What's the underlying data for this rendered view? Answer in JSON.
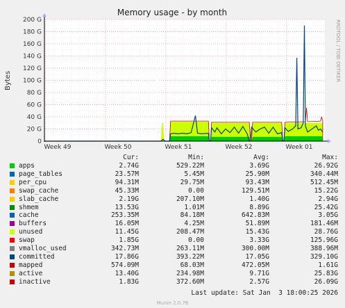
{
  "chart_data": {
    "type": "area",
    "title": "Memory usage - by month",
    "ylabel": "Bytes",
    "side_label": "RRDTOOL / TOBI OETIKER",
    "y_ticks": [
      "0",
      "20 G",
      "40 G",
      "60 G",
      "80 G",
      "100 G",
      "120 G",
      "140 G",
      "160 G",
      "180 G",
      "200 G"
    ],
    "ylim": [
      0,
      200
    ],
    "y_unit": "G",
    "x_ticks": [
      "Week 49",
      "Week 50",
      "Week 51",
      "Week 52",
      "Week 01"
    ],
    "grid": true,
    "series": [
      {
        "name": "committed",
        "color": "#00467a",
        "points": [
          [
            0.0,
            0
          ],
          [
            0.54,
            0
          ],
          [
            0.55,
            3
          ],
          [
            0.56,
            0
          ],
          [
            0.58,
            0
          ],
          [
            0.585,
            12
          ],
          [
            0.6,
            13
          ],
          [
            0.62,
            12
          ],
          [
            0.64,
            13
          ],
          [
            0.66,
            12
          ],
          [
            0.68,
            14
          ],
          [
            0.7,
            42
          ],
          [
            0.71,
            13
          ],
          [
            0.73,
            12
          ],
          [
            0.76,
            13
          ],
          [
            0.765,
            0
          ],
          [
            0.77,
            0
          ],
          [
            0.775,
            22
          ],
          [
            0.79,
            15
          ],
          [
            0.8,
            22
          ],
          [
            0.82,
            12
          ],
          [
            0.84,
            20
          ],
          [
            0.86,
            14
          ],
          [
            0.88,
            23
          ],
          [
            0.9,
            13
          ],
          [
            0.92,
            24
          ],
          [
            0.94,
            12
          ],
          [
            0.95,
            0
          ],
          [
            0.955,
            0
          ],
          [
            0.96,
            23
          ],
          [
            0.98,
            15
          ],
          [
            1.0,
            20
          ],
          [
            1.02,
            23
          ],
          [
            1.04,
            13
          ],
          [
            1.06,
            23
          ],
          [
            1.08,
            12
          ],
          [
            1.1,
            14
          ],
          [
            1.105,
            0
          ],
          [
            1.11,
            0
          ],
          [
            1.115,
            22
          ],
          [
            1.13,
            16
          ],
          [
            1.15,
            20
          ],
          [
            1.165,
            25
          ],
          [
            1.17,
            137
          ],
          [
            1.175,
            20
          ],
          [
            1.19,
            22
          ],
          [
            1.2,
            30
          ],
          [
            1.205,
            190
          ],
          [
            1.21,
            25
          ],
          [
            1.22,
            15
          ],
          [
            1.24,
            20
          ],
          [
            1.26,
            25
          ],
          [
            1.27,
            18
          ],
          [
            1.28,
            20
          ],
          [
            1.29,
            15
          ]
        ]
      },
      {
        "name": "unused",
        "color": "#ccff00",
        "points": [
          [
            0.0,
            0
          ],
          [
            0.54,
            0
          ],
          [
            0.545,
            30
          ],
          [
            0.55,
            30
          ],
          [
            0.555,
            0
          ],
          [
            0.58,
            0
          ],
          [
            0.585,
            32
          ],
          [
            0.76,
            32
          ],
          [
            0.765,
            0
          ],
          [
            0.77,
            0
          ],
          [
            0.775,
            30
          ],
          [
            0.95,
            30
          ],
          [
            0.955,
            0
          ],
          [
            0.96,
            0
          ],
          [
            0.965,
            30
          ],
          [
            1.1,
            30
          ],
          [
            1.105,
            0
          ],
          [
            1.11,
            0
          ],
          [
            1.115,
            30
          ],
          [
            1.29,
            30
          ]
        ]
      },
      {
        "name": "swap",
        "color": "#cc0000",
        "points": [
          [
            0.0,
            0
          ],
          [
            0.58,
            0
          ],
          [
            0.585,
            33
          ],
          [
            0.76,
            33
          ],
          [
            0.765,
            0
          ],
          [
            0.77,
            0
          ],
          [
            0.775,
            31
          ],
          [
            0.95,
            31
          ],
          [
            0.955,
            0
          ],
          [
            0.96,
            0
          ],
          [
            0.965,
            31
          ],
          [
            1.1,
            31
          ],
          [
            1.105,
            0
          ],
          [
            1.11,
            0
          ],
          [
            1.115,
            31
          ],
          [
            1.21,
            32
          ],
          [
            1.215,
            55
          ],
          [
            1.22,
            32
          ],
          [
            1.28,
            33
          ],
          [
            1.285,
            40
          ],
          [
            1.29,
            33
          ]
        ]
      },
      {
        "name": "apps",
        "color": "#00cc00",
        "points": [
          [
            0.0,
            0
          ],
          [
            0.58,
            0
          ],
          [
            0.585,
            8
          ],
          [
            0.76,
            8
          ],
          [
            0.765,
            0
          ],
          [
            0.77,
            0
          ],
          [
            0.775,
            7
          ],
          [
            0.95,
            7
          ],
          [
            0.955,
            0
          ],
          [
            0.96,
            0
          ],
          [
            0.965,
            7
          ],
          [
            1.1,
            7
          ],
          [
            1.105,
            0
          ],
          [
            1.11,
            0
          ],
          [
            1.115,
            8
          ],
          [
            1.29,
            8
          ]
        ]
      }
    ],
    "legend_columns": [
      "Cur:",
      "Min:",
      "Avg:",
      "Max:"
    ],
    "legend": [
      {
        "name": "apps",
        "color": "#00cc00",
        "cur": "2.74G",
        "min": "529.22M",
        "avg": "3.69G",
        "max": "26.92G"
      },
      {
        "name": "page_tables",
        "color": "#0066b3",
        "cur": "23.57M",
        "min": "5.45M",
        "avg": "25.90M",
        "max": "340.44M"
      },
      {
        "name": "per_cpu",
        "color": "#ff8000",
        "cur": "94.31M",
        "min": "29.75M",
        "avg": "93.43M",
        "max": "512.45M"
      },
      {
        "name": "swap_cache",
        "color": "#ffcc00",
        "cur": "45.33M",
        "min": "0.00",
        "avg": "129.51M",
        "max": "15.22G"
      },
      {
        "name": "slab_cache",
        "color": "#330099",
        "cur": "2.19G",
        "min": "207.10M",
        "avg": "1.40G",
        "max": "2.94G"
      },
      {
        "name": "shmem",
        "color": "#990099",
        "cur": "13.53G",
        "min": "1.01M",
        "avg": "8.89G",
        "max": "25.42G"
      },
      {
        "name": "cache",
        "color": "#ccff00",
        "cur": "253.35M",
        "min": "84.18M",
        "avg": "642.83M",
        "max": "3.05G"
      },
      {
        "name": "buffers",
        "color": "#ff0000",
        "cur": "16.05M",
        "min": "4.25M",
        "avg": "51.89M",
        "max": "181.46M"
      },
      {
        "name": "unused",
        "color": "#808080",
        "cur": "11.45G",
        "min": "208.47M",
        "avg": "15.43G",
        "max": "28.76G"
      },
      {
        "name": "swap",
        "color": "#008f00",
        "cur": "1.85G",
        "min": "0.00",
        "avg": "3.33G",
        "max": "125.96G"
      },
      {
        "name": "vmalloc_used",
        "color": "#00487d",
        "cur": "342.73M",
        "min": "263.11M",
        "avg": "300.00M",
        "max": "388.96M"
      },
      {
        "name": "committed",
        "color": "#b35a00",
        "cur": "17.86G",
        "min": "393.22M",
        "avg": "17.05G",
        "max": "329.10G"
      },
      {
        "name": "mapped",
        "color": "#b38f00",
        "cur": "574.09M",
        "min": "68.03M",
        "avg": "472.05M",
        "max": "1.61G"
      },
      {
        "name": "active",
        "color": "#6b006b",
        "cur": "13.40G",
        "min": "234.98M",
        "avg": "9.71G",
        "max": "25.83G"
      },
      {
        "name": "inactive",
        "color": "#8fb300",
        "cur": "1.83G",
        "min": "372.60M",
        "avg": "2.57G",
        "max": "26.09G"
      }
    ]
  },
  "legend_swatch_colors": [
    "#00cc00",
    "#0066b3",
    "#ffcc00",
    "#ff8000",
    "#ffcc00",
    "#008f00",
    "#0066b3",
    "#990099",
    "#ccff00",
    "#ff0000",
    "#808080",
    "#00467a",
    "#cc0000",
    "#b38f00",
    "#cc0000"
  ],
  "footer": {
    "last_update": "Last update: Sat Jan  3 18:00:25 2026",
    "munin": "Munin 2.0.76"
  }
}
